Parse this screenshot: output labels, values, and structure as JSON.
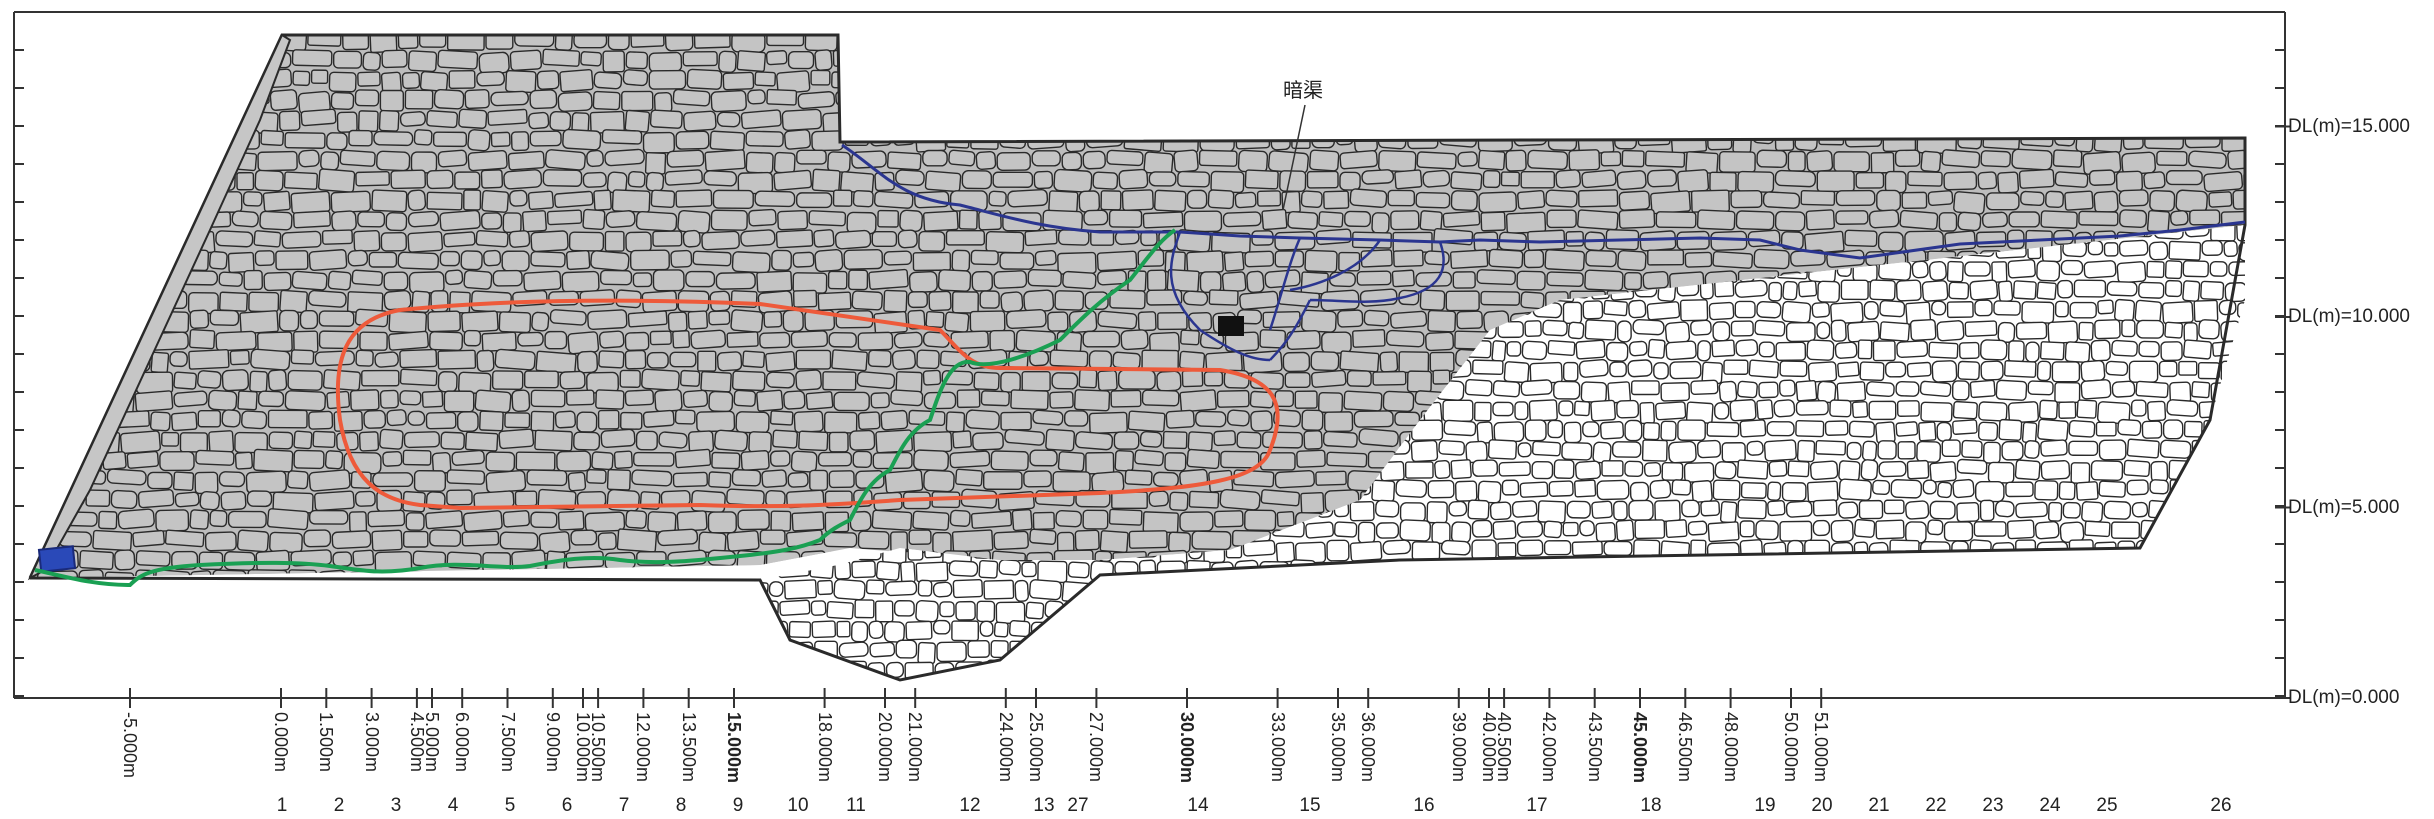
{
  "drawing": {
    "annotation": "暗渠",
    "elevation_labels": [
      {
        "text": "DL(m)=15.000",
        "value": 15
      },
      {
        "text": "DL(m)=10.000",
        "value": 10
      },
      {
        "text": "DL(m)=5.000",
        "value": 5
      },
      {
        "text": "DL(m)=0.000",
        "value": 0
      }
    ],
    "distance_labels": [
      {
        "text": "-5.000m",
        "value": -5,
        "bold": false
      },
      {
        "text": "0.000m",
        "value": 0,
        "bold": false
      },
      {
        "text": "1.500m",
        "value": 1.5,
        "bold": false
      },
      {
        "text": "3.000m",
        "value": 3,
        "bold": false
      },
      {
        "text": "4.500m",
        "value": 4.5,
        "bold": false
      },
      {
        "text": "5.000m",
        "value": 5,
        "bold": false
      },
      {
        "text": "6.000m",
        "value": 6,
        "bold": false
      },
      {
        "text": "7.500m",
        "value": 7.5,
        "bold": false
      },
      {
        "text": "9.000m",
        "value": 9,
        "bold": false
      },
      {
        "text": "10.000m",
        "value": 10,
        "bold": false
      },
      {
        "text": "10.500m",
        "value": 10.5,
        "bold": false
      },
      {
        "text": "12.000m",
        "value": 12,
        "bold": false
      },
      {
        "text": "13.500m",
        "value": 13.5,
        "bold": false
      },
      {
        "text": "15.000m",
        "value": 15,
        "bold": true
      },
      {
        "text": "18.000m",
        "value": 18,
        "bold": false
      },
      {
        "text": "20.000m",
        "value": 20,
        "bold": false
      },
      {
        "text": "21.000m",
        "value": 21,
        "bold": false
      },
      {
        "text": "24.000m",
        "value": 24,
        "bold": false
      },
      {
        "text": "25.000m",
        "value": 25,
        "bold": false
      },
      {
        "text": "27.000m",
        "value": 27,
        "bold": false
      },
      {
        "text": "30.000m",
        "value": 30,
        "bold": true
      },
      {
        "text": "33.000m",
        "value": 33,
        "bold": false
      },
      {
        "text": "35.000m",
        "value": 35,
        "bold": false
      },
      {
        "text": "36.000m",
        "value": 36,
        "bold": false
      },
      {
        "text": "39.000m",
        "value": 39,
        "bold": false
      },
      {
        "text": "40.000m",
        "value": 40,
        "bold": false
      },
      {
        "text": "40.500m",
        "value": 40.5,
        "bold": false
      },
      {
        "text": "42.000m",
        "value": 42,
        "bold": false
      },
      {
        "text": "43.500m",
        "value": 43.5,
        "bold": false
      },
      {
        "text": "45.000m",
        "value": 45,
        "bold": true
      },
      {
        "text": "46.500m",
        "value": 46.5,
        "bold": false
      },
      {
        "text": "48.000m",
        "value": 48,
        "bold": false
      },
      {
        "text": "50.000m",
        "value": 50,
        "bold": false
      },
      {
        "text": "51.000m",
        "value": 51,
        "bold": false
      }
    ],
    "section_labels": [
      "1",
      "2",
      "3",
      "4",
      "5",
      "6",
      "7",
      "8",
      "9",
      "10",
      "11",
      "12",
      "13",
      "27",
      "14",
      "15",
      "16",
      "17",
      "18",
      "19",
      "20",
      "21",
      "22",
      "23",
      "24",
      "25",
      "26"
    ],
    "colors": {
      "stone_fill": "#bdbdbd",
      "stone_edge": "#2a2a2a",
      "loose_stone_fill": "#ffffff",
      "red_outline": "#ee5a3a",
      "green_line": "#1aa053",
      "blue_line": "#2a3590",
      "blue_block": "#2a49b8",
      "frame": "#333333"
    }
  }
}
